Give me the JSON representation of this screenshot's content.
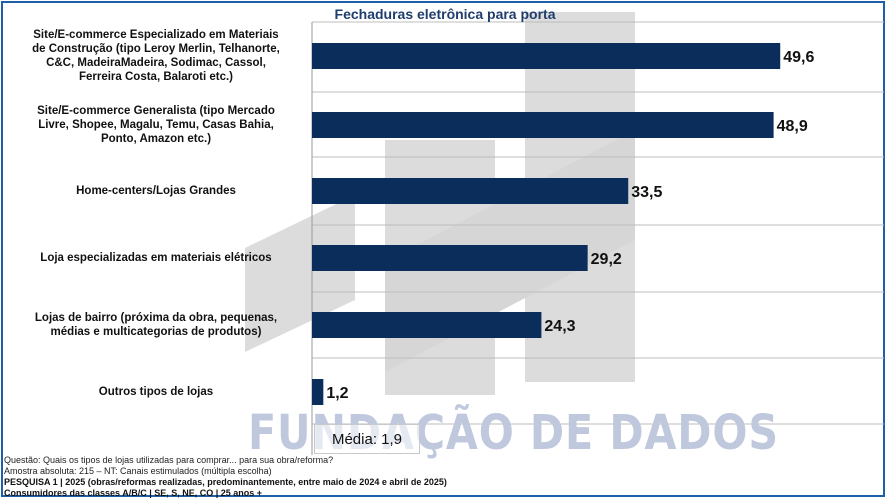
{
  "chart_data": {
    "type": "bar",
    "orientation": "horizontal",
    "title": "Fechaduras eletrônica para porta",
    "categories": [
      "Site/E-commerce Especializado em Materiais de Construção (tipo Leroy Merlin, Telhanorte, C&C, MadeiraMadeira, Sodimac, Cassol, Ferreira Costa, Balaroti etc.)",
      "Site/E-commerce Generalista (tipo Mercado Livre, Shopee, Magalu, Temu, Casas Bahia, Ponto, Amazon etc.)",
      "Home-centers/Lojas Grandes",
      "Loja especializadas em materiais elétricos",
      "Lojas de bairro (próxima da obra, pequenas, médias e multicategorias de produtos)",
      "Outros tipos de lojas"
    ],
    "category_lines": [
      [
        "Site/E-commerce Especializado em Materiais",
        "de Construção (tipo Leroy Merlin, Telhanorte,",
        "C&C, MadeiraMadeira, Sodimac, Cassol,",
        "Ferreira Costa, Balaroti etc.)"
      ],
      [
        "Site/E-commerce Generalista (tipo Mercado",
        "Livre, Shopee, Magalu, Temu, Casas Bahia,",
        "Ponto, Amazon etc.)"
      ],
      [
        "Home-centers/Lojas Grandes"
      ],
      [
        "Loja especializadas em materiais elétricos"
      ],
      [
        "Lojas de bairro (próxima da obra, pequenas,",
        "médias e multicategorias de produtos)"
      ],
      [
        "Outros tipos de lojas"
      ]
    ],
    "values": [
      49.6,
      48.9,
      33.5,
      29.2,
      24.3,
      1.2
    ],
    "value_labels": [
      "49,6",
      "48,9",
      "33,5",
      "29,2",
      "24,3",
      "1,2"
    ],
    "xlim": [
      0,
      50
    ],
    "grid": true,
    "bar_color": "#0b2d5c"
  },
  "mean_label": "Média: 1,9",
  "watermark": "FUNDAÇÃO DE DADOS",
  "footer": {
    "question": "Questão: Quais os tipos de lojas utilizadas para comprar... para sua obra/reforma?",
    "sample": "Amostra absoluta: 215 – NT: Canais estimulados (múltipla escolha)",
    "survey": "PESQUISA 1 | 2025 (obras/reformas realizadas, predominantemente, entre maio de 2024 e abril de 2025)",
    "audience": "Consumidores das classes A/B/C | SE, S, NE, CO | 25 anos +"
  }
}
